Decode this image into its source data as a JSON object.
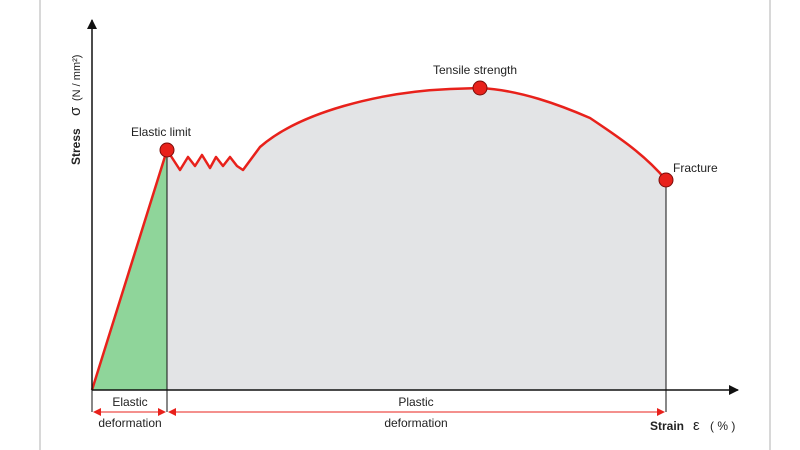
{
  "y_axis": {
    "label": "Stress",
    "symbol": "σ",
    "unit": "(N / mm²)"
  },
  "x_axis": {
    "label": "Strain",
    "symbol": "ε",
    "unit": "( % )"
  },
  "points": {
    "elastic_limit": "Elastic limit",
    "tensile_strength": "Tensile strength",
    "fracture": "Fracture"
  },
  "regions": {
    "elastic_line1": "Elastic",
    "elastic_line2": "deformation",
    "plastic_line1": "Plastic",
    "plastic_line2": "deformation"
  },
  "colors": {
    "curve": "#e8211b",
    "point_fill": "#e8211b",
    "elastic_area": "#8fd59a",
    "plastic_area": "#e3e4e6",
    "axis": "#111111",
    "dimension_arrows": "#e8211b",
    "frame_lines": "#b0b0b0"
  }
}
